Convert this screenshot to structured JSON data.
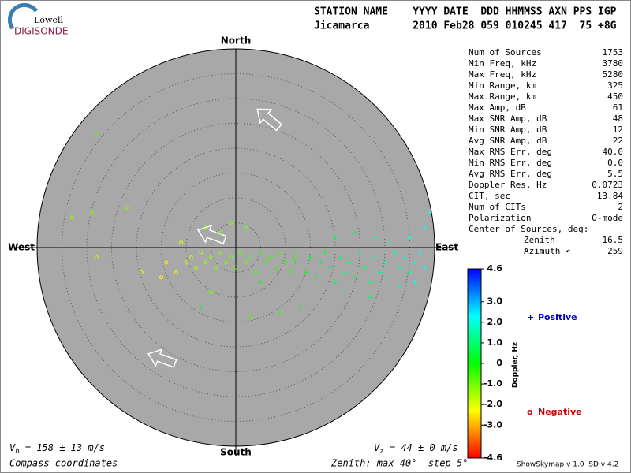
{
  "logo": {
    "top": "Lowell",
    "bottom": "DIGISONDE"
  },
  "header": {
    "line1": "STATION NAME    YYYY DATE  DDD HHMMSS AXN PPS IGP",
    "line2": "Jicamarca       2010 Feb28 059 010245 417  75 +8G"
  },
  "stats": [
    [
      "Num of Sources",
      "1753"
    ],
    [
      "Min Freq, kHz",
      "3780"
    ],
    [
      "Max Freq, kHz",
      "5280"
    ],
    [
      "Min Range, km",
      "325"
    ],
    [
      "Max Range, km",
      "450"
    ],
    [
      "Max Amp, dB",
      "61"
    ],
    [
      "Max SNR Amp, dB",
      "48"
    ],
    [
      "Min SNR Amp, dB",
      "12"
    ],
    [
      "Avg SNR Amp, dB",
      "22"
    ],
    [
      "Max RMS Err, deg",
      "40.0"
    ],
    [
      "Min RMS Err, deg",
      "0.0"
    ],
    [
      "Avg RMS Err, deg",
      "5.5"
    ],
    [
      "Doppler Res, Hz",
      "0.0723"
    ],
    [
      "CIT, sec",
      "13.84"
    ],
    [
      "Num of CITs",
      "2"
    ],
    [
      "Polarization",
      "O-mode"
    ]
  ],
  "center": {
    "title": "Center of Sources, deg:",
    "rows": [
      [
        "Zenith",
        "16.5"
      ],
      [
        "Azimuth ↶",
        "259"
      ]
    ]
  },
  "footer": {
    "vh": {
      "symbol": "V",
      "sub": "h",
      "text": " = 158 ± 13 m/s"
    },
    "vz": {
      "symbol": "V",
      "sub": "z",
      "text": " = 44 ± 0 m/s"
    },
    "coords": "Compass coordinates",
    "zenith": "Zenith: max 40°  step 5°",
    "version": "ShowSkymap v 1.0  SD v 4.2"
  },
  "chart_data": {
    "type": "scatter",
    "directions": {
      "north": "North",
      "south": "South",
      "east": "East",
      "west": "West"
    },
    "xlim": [
      -40,
      40
    ],
    "ylim": [
      -40,
      40
    ],
    "rings": [
      5,
      10,
      15,
      20,
      25,
      30,
      35,
      40
    ],
    "colorbar": {
      "label": "Doppler, Hz",
      "clim": [
        -4.6,
        4.6
      ],
      "colors": [
        "#ff0000",
        "#ffff00",
        "#00ff00",
        "#00ffff",
        "#0000ff"
      ],
      "ticks": [
        4.6,
        {
          "value": 3,
          "label": "3.0"
        },
        {
          "value": 2,
          "label": "2.0"
        },
        {
          "value": 1,
          "label": "1.0"
        },
        0,
        {
          "value": -1,
          "label": "-1.0"
        },
        {
          "value": -2,
          "label": "-2.0"
        },
        {
          "value": -3,
          "label": "-3.0"
        },
        -4.6
      ]
    },
    "series": [
      {
        "name": "Positive",
        "marker": "+",
        "color": "#0000cc",
        "x": [
          12,
          14,
          15,
          16,
          17,
          18,
          19,
          20,
          21,
          22,
          23,
          24,
          25,
          26,
          27,
          28,
          29,
          30,
          31,
          32,
          33,
          34,
          35,
          36,
          37,
          38,
          20,
          24,
          28,
          31,
          35,
          39,
          38,
          27,
          13,
          -7,
          5,
          33,
          36,
          22
        ],
        "y": [
          -3,
          -5,
          -2,
          -6,
          -3,
          -1,
          -4,
          -7,
          -2,
          -5,
          -3,
          -6,
          -1,
          -4,
          -7,
          -2,
          -5,
          -3,
          -6,
          -1,
          -4,
          -2,
          -5,
          -3,
          -1,
          -4,
          2,
          3,
          2,
          1,
          2,
          7,
          4,
          -10,
          -12,
          -12,
          -7,
          -8,
          -7,
          -9
        ],
        "values": [
          0.2,
          0.3,
          0.4,
          0.5,
          0.6,
          0.6,
          0.7,
          0.8,
          0.9,
          1.0,
          1.0,
          1.1,
          1.1,
          1.2,
          1.2,
          1.3,
          1.3,
          1.4,
          1.5,
          1.5,
          1.6,
          1.7,
          1.8,
          1.9,
          2.0,
          2.1,
          0.9,
          1.0,
          1.3,
          1.4,
          1.8,
          2.2,
          2.0,
          1.2,
          0.4,
          0.3,
          0.5,
          1.6,
          2.3,
          1.0
        ]
      },
      {
        "name": "Negative",
        "marker": "o",
        "color": "#cc0000",
        "x": [
          -10,
          -9,
          -8,
          -7,
          -6,
          -5,
          -4,
          -3,
          -2,
          -1,
          0,
          1,
          2,
          3,
          4,
          5,
          6,
          7,
          8,
          9,
          10,
          11,
          12,
          -12,
          -14,
          -11,
          -3,
          -1,
          2,
          -6,
          -28,
          -33,
          -29,
          -22,
          -28,
          3,
          9,
          -19,
          -15,
          -5
        ],
        "y": [
          -3,
          -2,
          -4,
          -1,
          -3,
          -2,
          -4,
          -1,
          -3,
          -2,
          -4,
          -1,
          -3,
          -2,
          -5,
          -1,
          -3,
          -2,
          -4,
          -1,
          -3,
          -5,
          -2,
          -5,
          -3,
          1,
          3,
          5,
          4,
          4,
          -2,
          6,
          7,
          8,
          23,
          -14,
          -13,
          -5,
          -6,
          -9
        ],
        "values": [
          -1.8,
          -1.7,
          -1.6,
          -1.5,
          -1.4,
          -1.3,
          -1.2,
          -1.2,
          -1.1,
          -1.0,
          -0.9,
          -0.9,
          -0.8,
          -0.7,
          -0.7,
          -0.6,
          -0.5,
          -0.5,
          -0.4,
          -0.4,
          -0.3,
          -0.3,
          -0.2,
          -2.2,
          -2.4,
          -2.0,
          -1.3,
          -1.2,
          -1.1,
          -1.4,
          -1.5,
          -1.2,
          -1.1,
          -1.3,
          -0.8,
          -0.6,
          -0.5,
          -2.0,
          -2.3,
          -1.0
        ]
      }
    ]
  }
}
